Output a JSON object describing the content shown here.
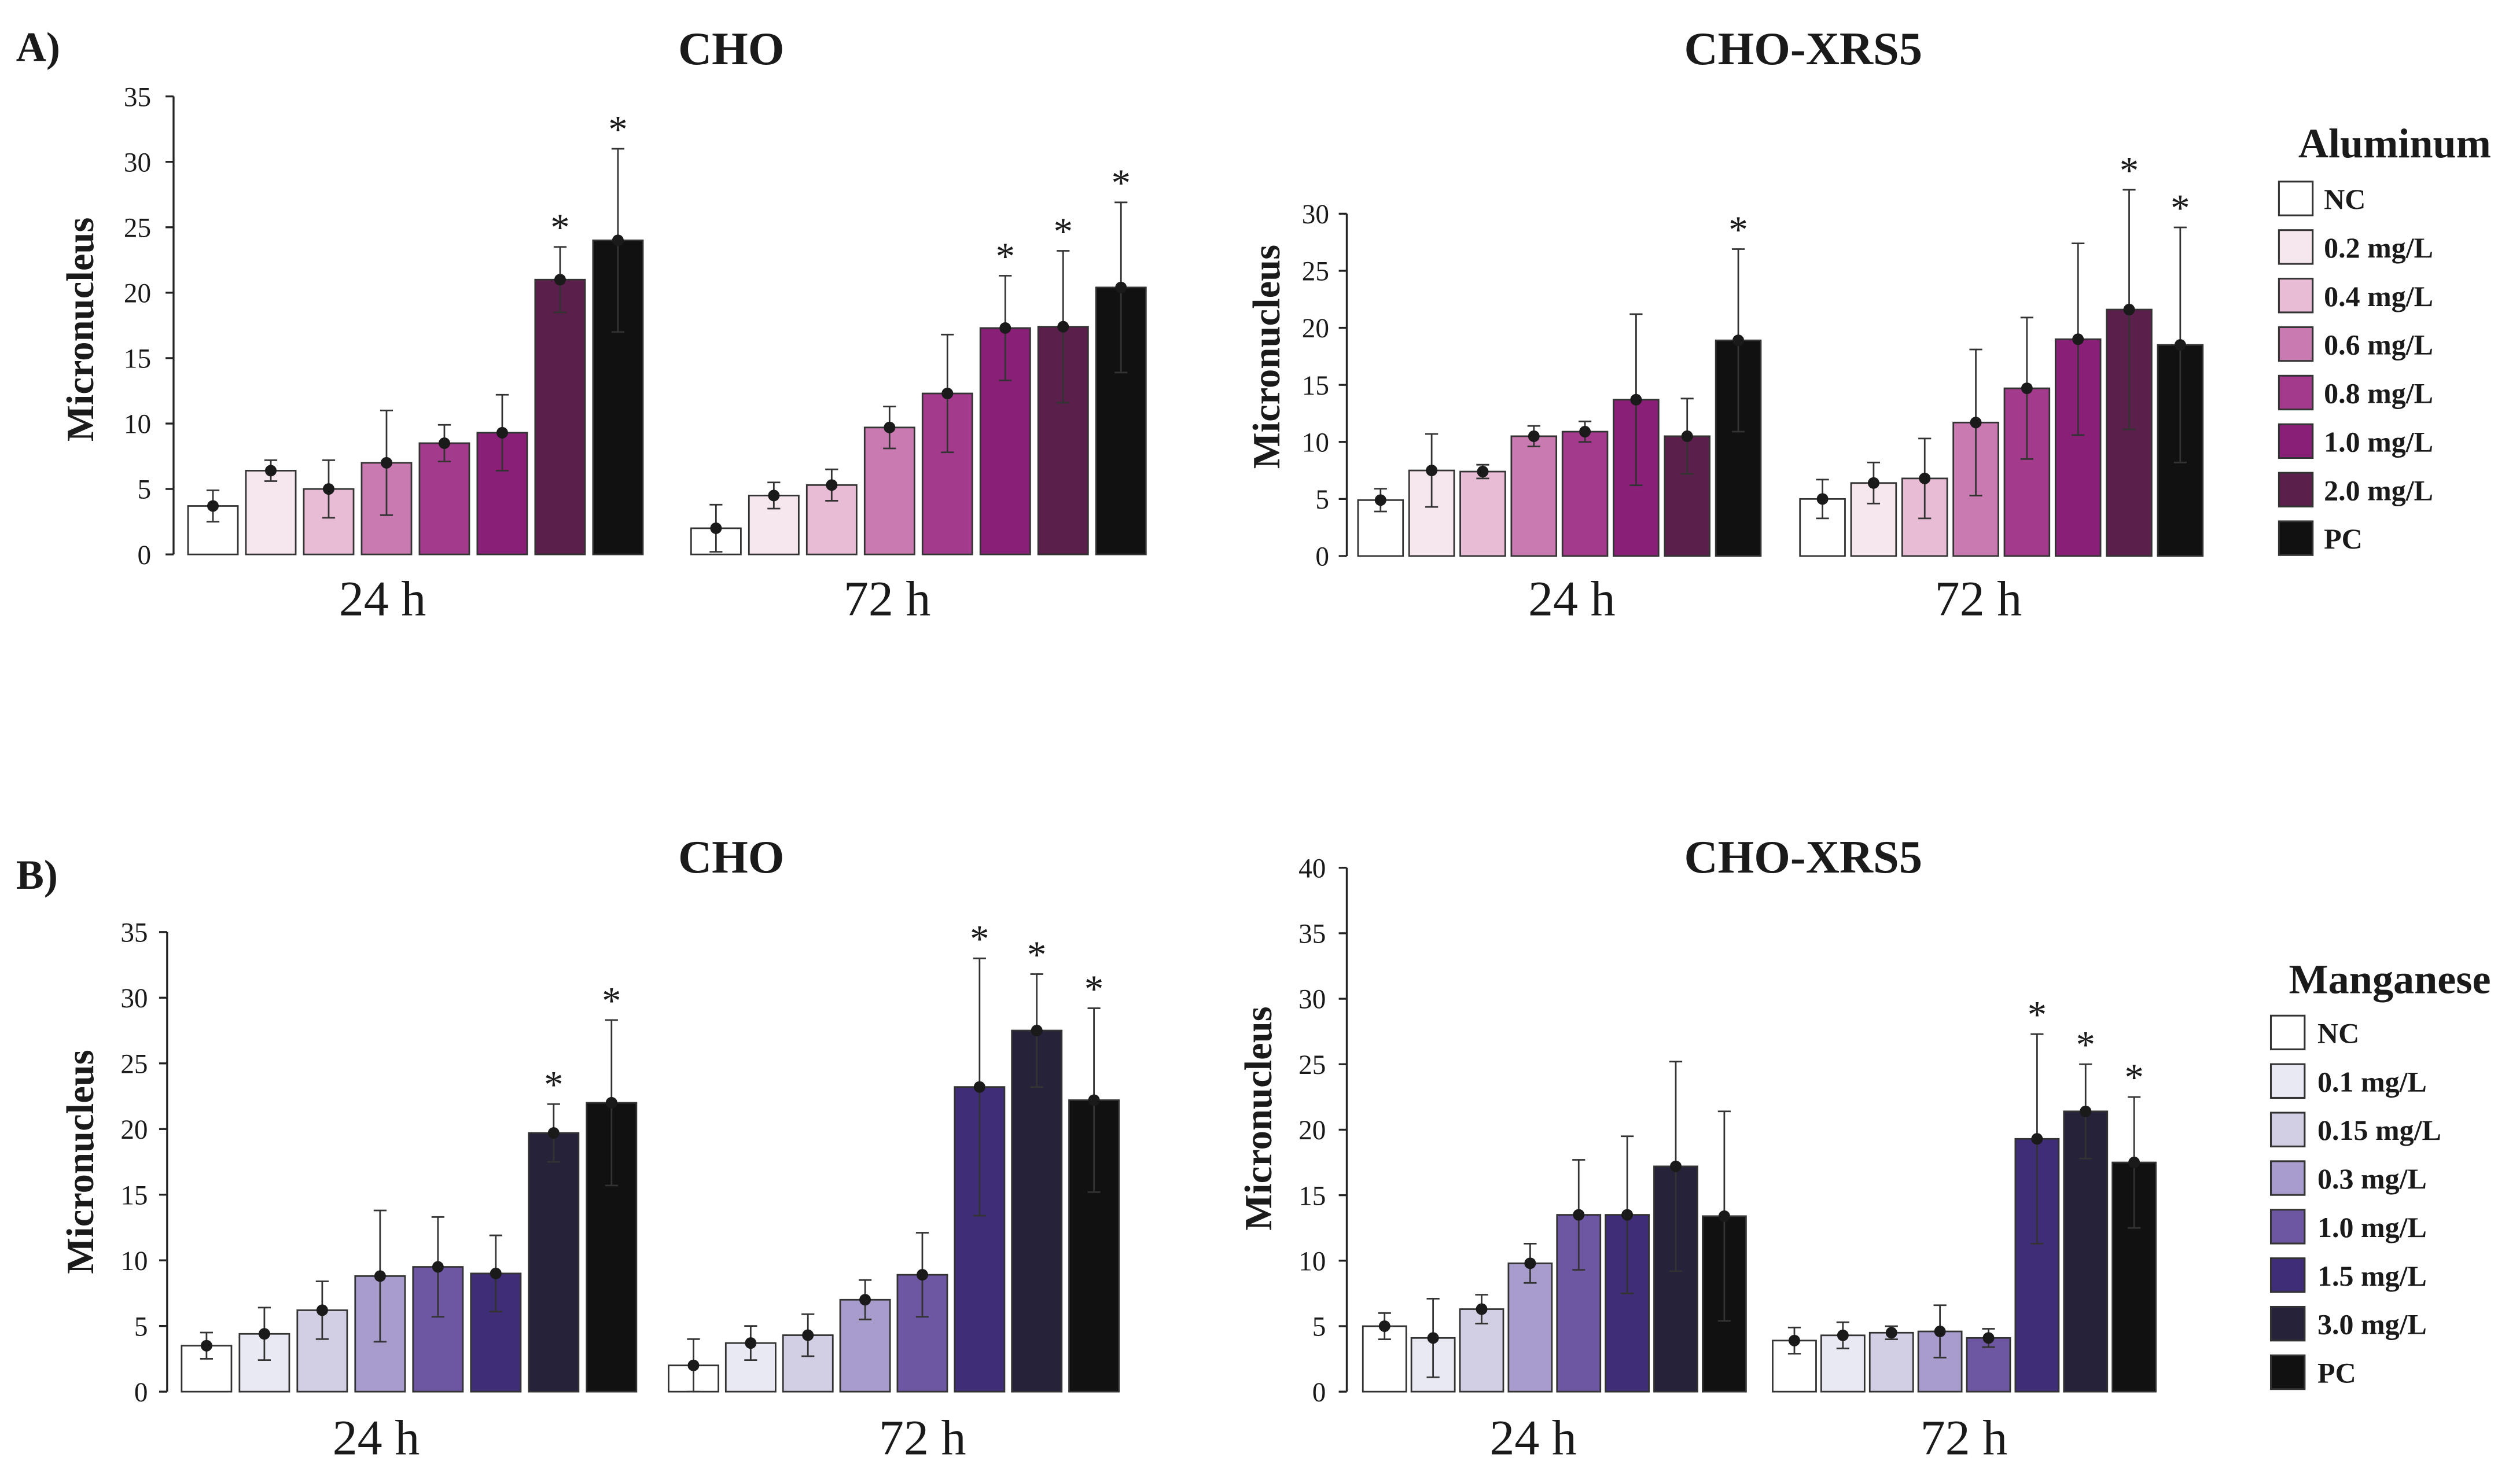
{
  "figure": {
    "legends": [
      {
        "title": "Aluminum",
        "entries": [
          "NC",
          "0.2 mg/L",
          "0.4 mg/L",
          "0.6 mg/L",
          "0.8 mg/L",
          "1.0 mg/L",
          "2.0 mg/L",
          "PC"
        ],
        "colors": [
          "#ffffff",
          "#f6e6ee",
          "#e7bcd4",
          "#c97ab0",
          "#a33a8c",
          "#8a1f78",
          "#5a1f4a",
          "#111111"
        ]
      },
      {
        "title": "Manganese",
        "entries": [
          "NC",
          "0.1 mg/L",
          "0.15 mg/L",
          "0.3 mg/L",
          "1.0 mg/L",
          "1.5 mg/L",
          "3.0 mg/L",
          "PC"
        ],
        "colors": [
          "#ffffff",
          "#e9e9f3",
          "#d2cfe4",
          "#a79ccc",
          "#6d57a2",
          "#3f2d78",
          "#26223a",
          "#111111"
        ]
      }
    ]
  },
  "chart_data": [
    {
      "type": "bar",
      "panel": "A)",
      "title": "CHO",
      "ylabel": "Micronucleus",
      "ylim": [
        0,
        35
      ],
      "yticks": [
        0,
        5,
        10,
        15,
        20,
        25,
        30,
        35
      ],
      "legend_ref": 0,
      "groups": [
        {
          "label": "24 h",
          "values": [
            3.7,
            6.4,
            5.0,
            7.0,
            8.5,
            9.3,
            21.0,
            24.0
          ],
          "err": [
            1.2,
            0.8,
            2.2,
            4.0,
            1.4,
            2.9,
            2.5,
            7.0
          ],
          "sig": [
            false,
            false,
            false,
            false,
            false,
            false,
            true,
            true
          ]
        },
        {
          "label": "72 h",
          "values": [
            2.0,
            4.5,
            5.3,
            9.7,
            12.3,
            17.3,
            17.4,
            20.4
          ],
          "err": [
            1.8,
            1.0,
            1.2,
            1.6,
            4.5,
            4.0,
            5.8,
            6.5
          ],
          "sig": [
            false,
            false,
            false,
            false,
            false,
            true,
            true,
            true
          ]
        }
      ]
    },
    {
      "type": "bar",
      "panel": "",
      "title": "CHO-XRS5",
      "ylabel": "Micronucleus",
      "ylim": [
        0,
        30
      ],
      "yticks": [
        0,
        5,
        10,
        15,
        20,
        25,
        30
      ],
      "legend_ref": 0,
      "groups": [
        {
          "label": "24 h",
          "values": [
            4.9,
            7.5,
            7.4,
            10.5,
            10.9,
            13.7,
            10.5,
            18.9
          ],
          "err": [
            1.0,
            3.2,
            0.6,
            0.9,
            0.9,
            7.5,
            3.3,
            8.0
          ],
          "sig": [
            false,
            false,
            false,
            false,
            false,
            false,
            false,
            true
          ]
        },
        {
          "label": "72 h",
          "values": [
            5.0,
            6.4,
            6.8,
            11.7,
            14.7,
            19.0,
            21.6,
            18.5
          ],
          "err": [
            1.7,
            1.8,
            3.5,
            6.4,
            6.2,
            8.4,
            10.5,
            10.3
          ],
          "sig": [
            false,
            false,
            false,
            false,
            false,
            false,
            true,
            true
          ]
        }
      ]
    },
    {
      "type": "bar",
      "panel": "B)",
      "title": "CHO",
      "ylabel": "Micronucleus",
      "ylim": [
        0,
        35
      ],
      "yticks": [
        0,
        5,
        10,
        15,
        20,
        25,
        30,
        35
      ],
      "legend_ref": 1,
      "groups": [
        {
          "label": "24 h",
          "values": [
            3.5,
            4.4,
            6.2,
            8.8,
            9.5,
            9.0,
            19.7,
            22.0
          ],
          "err": [
            1.0,
            2.0,
            2.2,
            5.0,
            3.8,
            2.9,
            2.2,
            6.3
          ],
          "sig": [
            false,
            false,
            false,
            false,
            false,
            false,
            true,
            true
          ]
        },
        {
          "label": "72 h",
          "values": [
            2.0,
            3.7,
            4.3,
            7.0,
            8.9,
            23.2,
            27.5,
            22.2
          ],
          "err": [
            2.0,
            1.3,
            1.6,
            1.5,
            3.2,
            9.8,
            4.3,
            7.0
          ],
          "sig": [
            false,
            false,
            false,
            false,
            false,
            true,
            true,
            true
          ]
        }
      ]
    },
    {
      "type": "bar",
      "panel": "",
      "title": "CHO-XRS5",
      "ylabel": "Micronucleus",
      "ylim": [
        0,
        40
      ],
      "yticks": [
        0,
        5,
        10,
        15,
        20,
        25,
        30,
        35,
        40
      ],
      "legend_ref": 1,
      "groups": [
        {
          "label": "24 h",
          "values": [
            5.0,
            4.1,
            6.3,
            9.8,
            13.5,
            13.5,
            17.2,
            13.4
          ],
          "err": [
            1.0,
            3.0,
            1.1,
            1.5,
            4.2,
            6.0,
            8.0,
            8.0
          ],
          "sig": [
            false,
            false,
            false,
            false,
            false,
            false,
            false,
            false
          ]
        },
        {
          "label": "72 h",
          "values": [
            3.9,
            4.3,
            4.5,
            4.6,
            4.1,
            19.3,
            21.4,
            17.5
          ],
          "err": [
            1.0,
            1.0,
            0.5,
            2.0,
            0.7,
            8.0,
            3.6,
            5.0
          ],
          "sig": [
            false,
            false,
            false,
            false,
            false,
            true,
            true,
            true
          ]
        }
      ]
    }
  ]
}
